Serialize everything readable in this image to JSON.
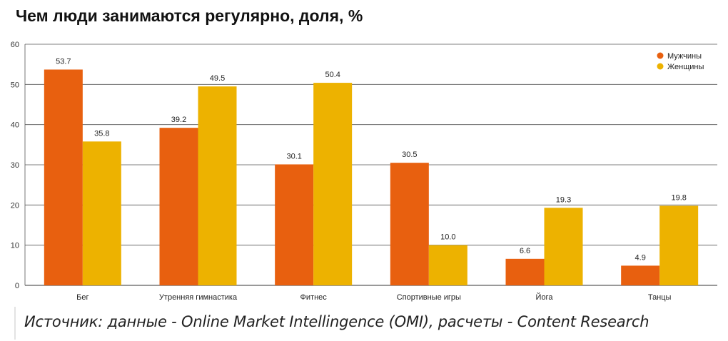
{
  "chart_data": {
    "type": "bar",
    "title": "Чем люди занимаются регулярно, доля, %",
    "categories": [
      "Бег",
      "Утренняя гимнастика",
      "Фитнес",
      "Спортивные игры",
      "Йога",
      "Танцы"
    ],
    "series": [
      {
        "name": "Мужчины",
        "values": [
          53.7,
          39.2,
          30.1,
          30.5,
          6.6,
          4.9
        ],
        "color": "#e8600f"
      },
      {
        "name": "Женщины",
        "values": [
          35.8,
          49.5,
          50.4,
          10.0,
          19.3,
          19.8
        ],
        "color": "#edb200"
      }
    ],
    "ylim": [
      0,
      60
    ],
    "yticks": [
      0,
      10,
      20,
      30,
      40,
      50,
      60
    ],
    "grid": true,
    "legend": "top-right",
    "xlabel": "",
    "ylabel": ""
  },
  "source_note": "Источник: данные - Online Market Intellingence (OMI), расчеты - Content Research"
}
